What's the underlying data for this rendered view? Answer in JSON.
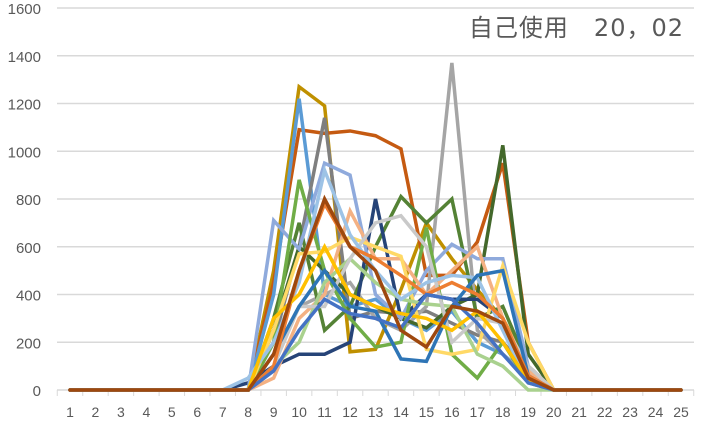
{
  "chart_data": {
    "type": "line",
    "title": "自己使用　20，02",
    "xlabel": "",
    "ylabel": "",
    "ylim": [
      0,
      1600
    ],
    "yticks": [
      0,
      200,
      400,
      600,
      800,
      1000,
      1200,
      1400,
      1600
    ],
    "grid": true,
    "legend": "none",
    "categories": [
      "1",
      "2",
      "3",
      "4",
      "5",
      "6",
      "7",
      "8",
      "9",
      "10",
      "11",
      "12",
      "13",
      "14",
      "15",
      "16",
      "17",
      "18",
      "19",
      "20",
      "21",
      "22",
      "23",
      "24",
      "25"
    ],
    "series": [
      {
        "color": "#BF9000",
        "values": [
          0,
          0,
          0,
          0,
          0,
          0,
          0,
          0,
          500,
          1270,
          1190,
          160,
          170,
          420,
          700,
          550,
          420,
          300,
          100,
          0,
          0,
          0,
          0,
          0,
          0
        ]
      },
      {
        "color": "#C55A11",
        "values": [
          0,
          0,
          0,
          0,
          0,
          0,
          0,
          0,
          450,
          1090,
          1075,
          1085,
          1065,
          1010,
          480,
          480,
          620,
          950,
          200,
          0,
          0,
          0,
          0,
          0,
          0
        ]
      },
      {
        "color": "#5B9BD5",
        "values": [
          0,
          0,
          0,
          0,
          0,
          0,
          0,
          0,
          400,
          1220,
          400,
          350,
          380,
          300,
          250,
          330,
          200,
          150,
          60,
          0,
          0,
          0,
          0,
          0,
          0
        ]
      },
      {
        "color": "#7F7F7F",
        "values": [
          0,
          0,
          0,
          0,
          0,
          0,
          0,
          0,
          200,
          600,
          1140,
          300,
          330,
          320,
          330,
          280,
          230,
          200,
          80,
          0,
          0,
          0,
          0,
          0,
          0
        ]
      },
      {
        "color": "#A5A5A5",
        "values": [
          0,
          0,
          0,
          0,
          0,
          0,
          0,
          0,
          150,
          350,
          400,
          450,
          300,
          250,
          350,
          1370,
          250,
          150,
          50,
          0,
          0,
          0,
          0,
          0,
          0
        ]
      },
      {
        "color": "#548235",
        "values": [
          0,
          0,
          0,
          0,
          0,
          0,
          0,
          0,
          300,
          700,
          250,
          350,
          600,
          810,
          700,
          800,
          300,
          350,
          100,
          0,
          0,
          0,
          0,
          0,
          0
        ]
      },
      {
        "color": "#43682B",
        "values": [
          0,
          0,
          0,
          0,
          0,
          0,
          0,
          0,
          250,
          600,
          500,
          400,
          350,
          300,
          260,
          350,
          400,
          1025,
          150,
          0,
          0,
          0,
          0,
          0,
          0
        ]
      },
      {
        "color": "#264478",
        "values": [
          0,
          0,
          0,
          0,
          0,
          0,
          0,
          30,
          100,
          150,
          150,
          200,
          800,
          300,
          400,
          380,
          380,
          300,
          50,
          0,
          0,
          0,
          0,
          0,
          0
        ]
      },
      {
        "color": "#8FAADC",
        "values": [
          0,
          0,
          0,
          0,
          0,
          0,
          0,
          0,
          710,
          590,
          950,
          900,
          400,
          300,
          500,
          610,
          550,
          550,
          100,
          0,
          0,
          0,
          0,
          0,
          0
        ]
      },
      {
        "color": "#70AD47",
        "values": [
          0,
          0,
          0,
          0,
          0,
          0,
          0,
          0,
          200,
          880,
          500,
          300,
          180,
          200,
          680,
          150,
          50,
          200,
          30,
          0,
          0,
          0,
          0,
          0,
          0
        ]
      },
      {
        "color": "#F4B183",
        "values": [
          0,
          0,
          0,
          0,
          0,
          0,
          0,
          0,
          50,
          300,
          400,
          750,
          550,
          550,
          400,
          500,
          600,
          300,
          80,
          0,
          0,
          0,
          0,
          0,
          0
        ]
      },
      {
        "color": "#FFD966",
        "values": [
          0,
          0,
          0,
          0,
          0,
          0,
          0,
          0,
          250,
          570,
          580,
          640,
          600,
          560,
          170,
          150,
          170,
          520,
          200,
          0,
          0,
          0,
          0,
          0,
          0
        ]
      },
      {
        "color": "#A9D18E",
        "values": [
          0,
          0,
          0,
          0,
          0,
          0,
          0,
          0,
          100,
          200,
          450,
          550,
          450,
          380,
          360,
          350,
          150,
          100,
          0,
          0,
          0,
          0,
          0,
          0,
          0
        ]
      },
      {
        "color": "#C9C9C9",
        "values": [
          0,
          0,
          0,
          0,
          0,
          0,
          0,
          0,
          100,
          350,
          350,
          550,
          700,
          730,
          600,
          200,
          300,
          280,
          100,
          0,
          0,
          0,
          0,
          0,
          0
        ]
      },
      {
        "color": "#9DC3E6",
        "values": [
          0,
          0,
          0,
          0,
          0,
          0,
          0,
          50,
          200,
          450,
          920,
          650,
          500,
          380,
          450,
          480,
          470,
          250,
          30,
          0,
          0,
          0,
          0,
          0,
          0
        ]
      },
      {
        "color": "#2E75B6",
        "values": [
          0,
          0,
          0,
          0,
          0,
          0,
          0,
          0,
          150,
          350,
          500,
          350,
          330,
          130,
          120,
          350,
          480,
          500,
          60,
          0,
          0,
          0,
          0,
          0,
          0
        ]
      },
      {
        "color": "#ED7D31",
        "values": [
          0,
          0,
          0,
          0,
          0,
          0,
          0,
          0,
          100,
          500,
          780,
          600,
          550,
          480,
          400,
          450,
          400,
          300,
          60,
          0,
          0,
          0,
          0,
          0,
          0
        ]
      },
      {
        "color": "#FFC000",
        "values": [
          0,
          0,
          0,
          0,
          0,
          0,
          0,
          0,
          300,
          400,
          600,
          400,
          350,
          320,
          300,
          250,
          330,
          200,
          40,
          0,
          0,
          0,
          0,
          0,
          0
        ]
      },
      {
        "color": "#4472C4",
        "values": [
          0,
          0,
          0,
          0,
          0,
          0,
          0,
          0,
          80,
          250,
          380,
          320,
          300,
          260,
          400,
          380,
          280,
          150,
          30,
          0,
          0,
          0,
          0,
          0,
          0
        ]
      },
      {
        "color": "#9E480E",
        "values": [
          0,
          0,
          0,
          0,
          0,
          0,
          0,
          0,
          150,
          500,
          800,
          600,
          500,
          250,
          180,
          350,
          330,
          280,
          50,
          0,
          0,
          0,
          0,
          0,
          0
        ]
      }
    ]
  }
}
